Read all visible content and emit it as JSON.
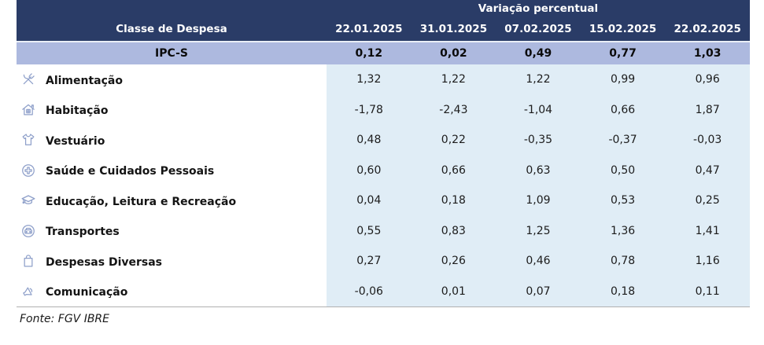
{
  "table": {
    "header": {
      "variation_label": "Variação percentual",
      "class_label": "Classe de Despesa",
      "dates": [
        "22.01.2025",
        "31.01.2025",
        "07.02.2025",
        "15.02.2025",
        "22.02.2025"
      ]
    },
    "ipcs_row": {
      "label": "IPC-S",
      "values": [
        "0,12",
        "0,02",
        "0,49",
        "0,77",
        "1,03"
      ]
    },
    "rows": [
      {
        "icon": "utensils-icon",
        "label": "Alimentação",
        "values": [
          "1,32",
          "1,22",
          "1,22",
          "0,99",
          "0,96"
        ]
      },
      {
        "icon": "house-icon",
        "label": "Habitação",
        "values": [
          "-1,78",
          "-2,43",
          "-1,04",
          "0,66",
          "1,87"
        ]
      },
      {
        "icon": "tshirt-icon",
        "label": "Vestuário",
        "values": [
          "0,48",
          "0,22",
          "-0,35",
          "-0,37",
          "-0,03"
        ]
      },
      {
        "icon": "health-cross-icon",
        "label": "Saúde e Cuidados Pessoais",
        "values": [
          "0,60",
          "0,66",
          "0,63",
          "0,50",
          "0,47"
        ]
      },
      {
        "icon": "graduation-cap-icon",
        "label": "Educação, Leitura e Recreação",
        "values": [
          "0,04",
          "0,18",
          "1,09",
          "0,53",
          "0,25"
        ]
      },
      {
        "icon": "car-icon",
        "label": "Transportes",
        "values": [
          "0,55",
          "0,83",
          "1,25",
          "1,36",
          "1,41"
        ]
      },
      {
        "icon": "shopping-bag-icon",
        "label": "Despesas Diversas",
        "values": [
          "0,27",
          "0,26",
          "0,46",
          "0,78",
          "1,16"
        ]
      },
      {
        "icon": "megaphone-icon",
        "label": "Comunicação",
        "values": [
          "-0,06",
          "0,01",
          "0,07",
          "0,18",
          "0,11"
        ]
      }
    ]
  },
  "footer": {
    "source": "Fonte: FGV IBRE"
  },
  "colors": {
    "header_bg": "#2a3c67",
    "ipcs_row_bg": "#adb9df",
    "data_bg": "#e0edf6",
    "icon": "#8fa0ca"
  }
}
